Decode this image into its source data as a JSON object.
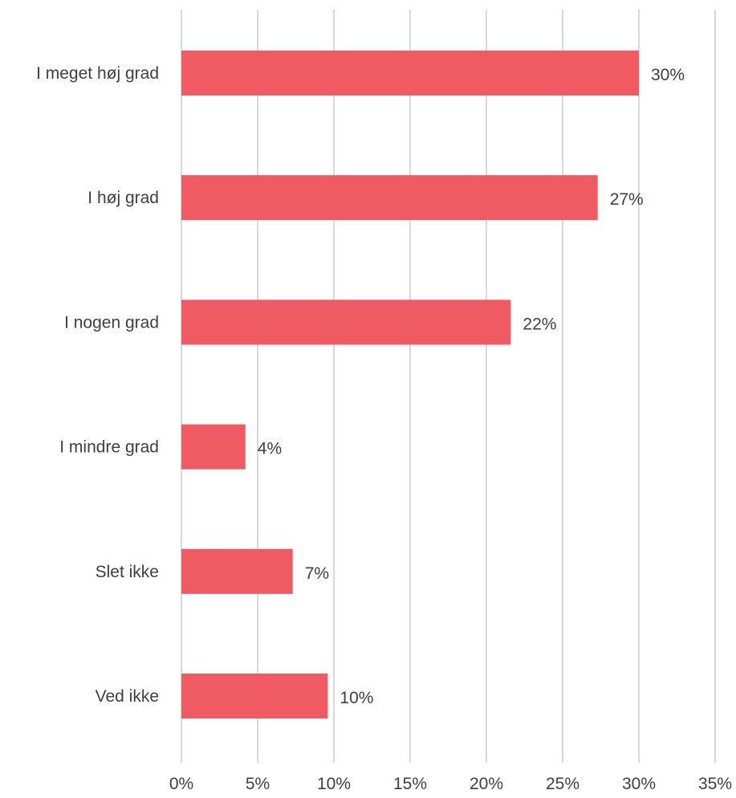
{
  "chart_data": {
    "type": "bar",
    "orientation": "horizontal",
    "categories": [
      "I meget høj grad",
      "I høj grad",
      "I nogen grad",
      "I mindre grad",
      "Slet ikke",
      "Ved ikke"
    ],
    "values": [
      30,
      27.3,
      21.6,
      4.2,
      7.3,
      9.6
    ],
    "value_labels": [
      "30%",
      "27%",
      "22%",
      "4%",
      "7%",
      "10%"
    ],
    "xlim": [
      0,
      35
    ],
    "x_ticks": [
      0,
      5,
      10,
      15,
      20,
      25,
      30,
      35
    ],
    "x_tick_labels": [
      "0%",
      "5%",
      "10%",
      "15%",
      "20%",
      "25%",
      "30%",
      "35%"
    ],
    "title": "",
    "xlabel": "",
    "ylabel": "",
    "grid": "vertical",
    "legend": "none",
    "colors": {
      "bar": "#f05b63",
      "grid": "#d9d9d9",
      "text": "#3f3f3f"
    }
  }
}
